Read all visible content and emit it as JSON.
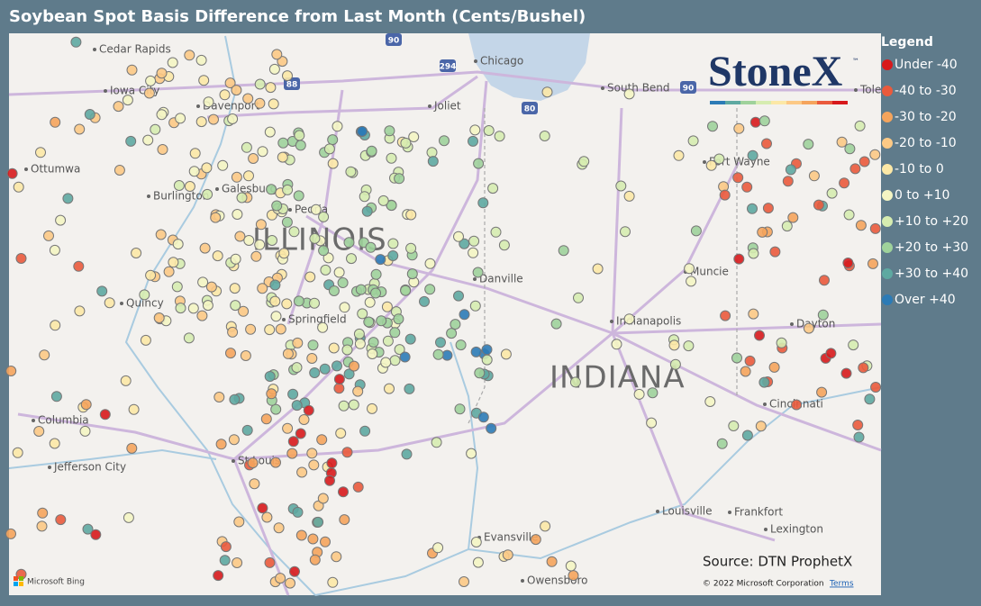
{
  "header": {
    "title": "Soybean Spot Basis Difference from Last Month (Cents/Bushel)"
  },
  "legend": {
    "title": "Legend",
    "items": [
      {
        "label": "Under -40",
        "color": "#d7191c"
      },
      {
        "label": "-40 to -30",
        "color": "#ea5a3c"
      },
      {
        "label": "-30 to -20",
        "color": "#f5a45c"
      },
      {
        "label": "-20 to -10",
        "color": "#fcc985"
      },
      {
        "label": "-10 to 0",
        "color": "#fce8a6"
      },
      {
        "label": "0 to +10",
        "color": "#f4f5c3"
      },
      {
        "label": "+10 to +20",
        "color": "#d6ecb0"
      },
      {
        "label": "+20 to +30",
        "color": "#9fd29b"
      },
      {
        "label": "+30 to +40",
        "color": "#5ea9a1"
      },
      {
        "label": "Over +40",
        "color": "#2c7bb6"
      }
    ]
  },
  "logo": {
    "name": "StoneX",
    "mark": "™"
  },
  "map": {
    "states": [
      "ILLINOIS",
      "INDIANA"
    ],
    "cities": [
      "Cedar Rapids",
      "Iowa City",
      "Davenport",
      "Chicago",
      "South Bend",
      "Joliet",
      "Ottumwa",
      "Burlington",
      "Galesburg",
      "Peoria",
      "Fort Wayne",
      "Tole",
      "Quincy",
      "Springfield",
      "Danville",
      "Muncie",
      "Indianapolis",
      "Dayton",
      "Columbia",
      "Cincinnati",
      "St Louis",
      "Jefferson City",
      "Louisville",
      "Frankfort",
      "Lexington",
      "Evansville",
      "Owensboro"
    ],
    "highways": [
      "90",
      "294",
      "88",
      "80",
      "90"
    ]
  },
  "source": "Source: DTN ProphetX",
  "attribution": {
    "brand": "Microsoft Bing",
    "copyright": "© 2022 Microsoft Corporation",
    "terms": "Terms"
  }
}
